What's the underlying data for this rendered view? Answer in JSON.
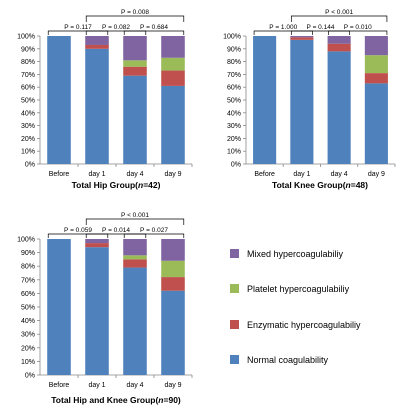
{
  "colors": {
    "normal": "#4F81BD",
    "enzymatic": "#C0504D",
    "platelet": "#9BBB59",
    "mixed": "#8064A2"
  },
  "legend": [
    {
      "key": "mixed",
      "label": "Mixed hypercoagulabiliy"
    },
    {
      "key": "platelet",
      "label": "Platelet hypercoagulabiliy"
    },
    {
      "key": "enzymatic",
      "label": "Enzymatic hypercoagulabiliy"
    },
    {
      "key": "normal",
      "label": "Normal coagulability"
    }
  ],
  "chart_data": [
    {
      "type": "bar",
      "stacked": true,
      "title_main": "Total Hip Group(",
      "title_n": "n",
      "title_end": "=42)",
      "categories": [
        "Before",
        "day 1",
        "day 4",
        "day 9"
      ],
      "yticks": [
        "0%",
        "10%",
        "20%",
        "30%",
        "40%",
        "50%",
        "60%",
        "70%",
        "80%",
        "90%",
        "100%"
      ],
      "ylim": [
        0,
        100
      ],
      "series": [
        {
          "name": "Normal coagulability",
          "key": "normal",
          "values": [
            100,
            90,
            69,
            61
          ]
        },
        {
          "name": "Enzymatic hypercoagulabiliy",
          "key": "enzymatic",
          "values": [
            0,
            3,
            7,
            12
          ]
        },
        {
          "name": "Platelet hypercoagulabiliy",
          "key": "platelet",
          "values": [
            0,
            0,
            5,
            10
          ]
        },
        {
          "name": "Mixed hypercoagulabiliy",
          "key": "mixed",
          "values": [
            0,
            7,
            19,
            17
          ]
        }
      ],
      "pvalues": [
        {
          "label": "P = 0.117",
          "from": 0,
          "to": 1,
          "level": 0
        },
        {
          "label": "P = 0.082",
          "from": 1,
          "to": 2,
          "level": 0
        },
        {
          "label": "P = 0.684",
          "from": 2,
          "to": 3,
          "level": 0
        },
        {
          "label": "P = 0.008",
          "from": 1,
          "to": 3,
          "level": 1
        }
      ]
    },
    {
      "type": "bar",
      "stacked": true,
      "title_main": "Total Knee Group(",
      "title_n": "n",
      "title_end": "=48)",
      "categories": [
        "Before",
        "day 1",
        "day 4",
        "day 9"
      ],
      "yticks": [
        "0%",
        "10%",
        "20%",
        "30%",
        "40%",
        "50%",
        "60%",
        "70%",
        "80%",
        "90%",
        "100%"
      ],
      "ylim": [
        0,
        100
      ],
      "series": [
        {
          "name": "Normal coagulability",
          "key": "normal",
          "values": [
            100,
            97,
            88,
            63
          ]
        },
        {
          "name": "Enzymatic hypercoagulabiliy",
          "key": "enzymatic",
          "values": [
            0,
            2,
            6,
            8
          ]
        },
        {
          "name": "Platelet hypercoagulabiliy",
          "key": "platelet",
          "values": [
            0,
            0,
            0,
            14
          ]
        },
        {
          "name": "Mixed hypercoagulabiliy",
          "key": "mixed",
          "values": [
            0,
            1,
            6,
            15
          ]
        }
      ],
      "pvalues": [
        {
          "label": "P = 1.000",
          "from": 0,
          "to": 1,
          "level": 0
        },
        {
          "label": "P = 0.144",
          "from": 1,
          "to": 2,
          "level": 0
        },
        {
          "label": "P = 0.010",
          "from": 2,
          "to": 3,
          "level": 0
        },
        {
          "label": "P < 0.001",
          "from": 1,
          "to": 3,
          "level": 1
        }
      ]
    },
    {
      "type": "bar",
      "stacked": true,
      "title_main": "Total Hip and Knee Group(",
      "title_n": "n",
      "title_end": "=90)",
      "categories": [
        "Before",
        "day 1",
        "day 4",
        "day 9"
      ],
      "yticks": [
        "0%",
        "10%",
        "20%",
        "30%",
        "40%",
        "50%",
        "60%",
        "70%",
        "80%",
        "90%",
        "100%"
      ],
      "ylim": [
        0,
        100
      ],
      "series": [
        {
          "name": "Normal coagulability",
          "key": "normal",
          "values": [
            100,
            94,
            79,
            62
          ]
        },
        {
          "name": "Enzymatic hypercoagulabiliy",
          "key": "enzymatic",
          "values": [
            0,
            3,
            6,
            10
          ]
        },
        {
          "name": "Platelet hypercoagulabiliy",
          "key": "platelet",
          "values": [
            0,
            0,
            3,
            12
          ]
        },
        {
          "name": "Mixed hypercoagulabiliy",
          "key": "mixed",
          "values": [
            0,
            3,
            12,
            16
          ]
        }
      ],
      "pvalues": [
        {
          "label": "P = 0.059",
          "from": 0,
          "to": 1,
          "level": 0
        },
        {
          "label": "P = 0.014",
          "from": 1,
          "to": 2,
          "level": 0
        },
        {
          "label": "P = 0.027",
          "from": 2,
          "to": 3,
          "level": 0
        },
        {
          "label": "P < 0.001",
          "from": 1,
          "to": 3,
          "level": 1
        }
      ]
    }
  ]
}
